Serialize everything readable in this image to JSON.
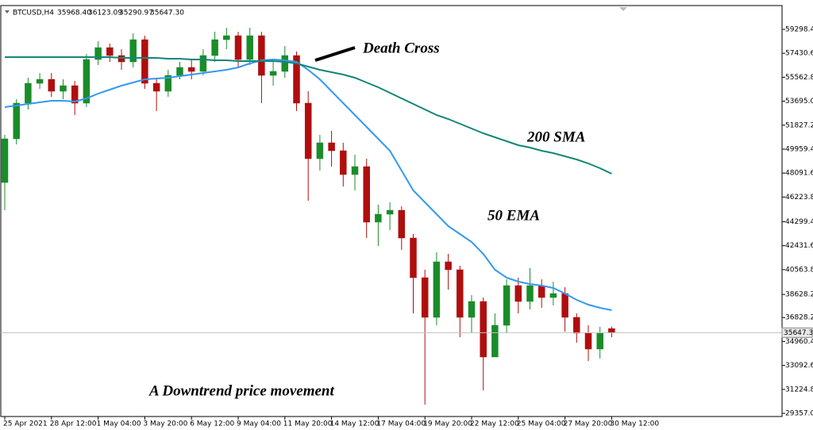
{
  "chart_data": {
    "type": "candlestick",
    "symbol": "BTCUSD,H4",
    "header_values": [
      "35968.40",
      "36123.09",
      "35290.97",
      "35647.30"
    ],
    "categories": [
      "25 Apr 2021",
      null,
      null,
      null,
      "28 Apr 12:00",
      null,
      null,
      null,
      "1 May 04:00",
      null,
      null,
      null,
      "3 May 20:00",
      null,
      null,
      null,
      "6 May 12:00",
      null,
      null,
      null,
      "9 May 04:00",
      null,
      null,
      null,
      "11 May 20:00",
      null,
      null,
      null,
      "14 May 12:00",
      null,
      null,
      null,
      "17 May 04:00",
      null,
      null,
      null,
      "19 May 20:00",
      null,
      null,
      null,
      "22 May 12:00",
      null,
      null,
      null,
      "25 May 04:00",
      null,
      null,
      null,
      "27 May 20:00",
      null,
      null,
      null,
      "30 May 12:00"
    ],
    "candles": {
      "up_color": "#1a8c2a",
      "down_color": "#b00e0e",
      "open": [
        47359,
        50762,
        53545,
        55092,
        55401,
        54473,
        54906,
        53545,
        56948,
        57875,
        57257,
        56762,
        58494,
        55092,
        54473,
        55710,
        56329,
        56020,
        57257,
        58494,
        58803,
        56948,
        58803,
        55710,
        56020,
        57257,
        53545,
        49215,
        50452,
        49834,
        47978,
        48596,
        44265,
        44884,
        45193,
        43028,
        39935,
        36843,
        41172,
        40553,
        36843,
        38080,
        33750,
        36224,
        39317,
        38080,
        39317,
        38389,
        38698,
        36843,
        35606,
        34369,
        35968.4
      ],
      "high": [
        51071,
        53854,
        55525,
        55896,
        55896,
        55401,
        55278,
        57381,
        58370,
        58185,
        57752,
        58989,
        58803,
        55525,
        56143,
        56762,
        56948,
        57752,
        59113,
        59422,
        59113,
        59422,
        59113,
        56762,
        57999,
        57566,
        54473,
        51071,
        51380,
        50452,
        49525,
        49215,
        45626,
        45813,
        45503,
        43338,
        40553,
        41916,
        41792,
        40863,
        38575,
        38389,
        37152,
        39812,
        39935,
        40678,
        39812,
        39626,
        39193,
        37152,
        36224,
        36100,
        36123.09
      ],
      "low": [
        45193,
        50329,
        53050,
        54659,
        54040,
        53854,
        52617,
        53236,
        56515,
        56762,
        56143,
        56329,
        54659,
        52927,
        54040,
        55401,
        55401,
        55710,
        56762,
        57752,
        56329,
        56515,
        53545,
        54906,
        55525,
        52927,
        45936,
        48287,
        48596,
        47050,
        46741,
        43028,
        42410,
        43648,
        42101,
        37152,
        30038,
        36224,
        39008,
        35297,
        35606,
        31151,
        34802,
        35606,
        37152,
        37461,
        37585,
        37770,
        35730,
        34863,
        33441,
        33627,
        35290.97
      ],
      "close": [
        50762,
        53545,
        55092,
        55401,
        54473,
        54906,
        53545,
        56948,
        57875,
        57257,
        56762,
        58494,
        55092,
        54473,
        55710,
        56329,
        56020,
        57257,
        58494,
        58803,
        56948,
        58803,
        55710,
        56020,
        57257,
        53545,
        49215,
        50452,
        49834,
        47978,
        48596,
        44265,
        44884,
        45193,
        43028,
        39935,
        36843,
        41172,
        40553,
        36843,
        38080,
        33750,
        36224,
        39317,
        38080,
        39317,
        38389,
        38698,
        36843,
        35606,
        34369,
        35606,
        35647.3
      ]
    },
    "series": [
      {
        "name": "50 EMA",
        "color": "#3399ee",
        "values": [
          53236,
          53360,
          53483,
          53607,
          53731,
          53731,
          53669,
          53916,
          54287,
          54597,
          54906,
          55153,
          55401,
          55463,
          55525,
          55649,
          55772,
          55896,
          56020,
          56144,
          56329,
          56638,
          56886,
          56948,
          56886,
          56762,
          56144,
          55401,
          54473,
          53545,
          52617,
          51689,
          50762,
          49834,
          48287,
          46741,
          45813,
          44884,
          43956,
          43338,
          42719,
          41791,
          40553,
          39935,
          39625,
          39440,
          39317,
          39131,
          38698,
          38203,
          37832,
          37585,
          37400
        ]
      },
      {
        "name": "200 SMA",
        "color": "#12857a",
        "values": [
          57133,
          57133,
          57133,
          57133,
          57133,
          57133,
          57133,
          57133,
          57133,
          57133,
          57071,
          57071,
          57071,
          57071,
          57009,
          57009,
          56948,
          56948,
          56886,
          56886,
          56824,
          56824,
          56824,
          56824,
          56762,
          56638,
          56391,
          56143,
          55958,
          55772,
          55525,
          55154,
          54783,
          54350,
          53917,
          53484,
          53050,
          52617,
          52308,
          51937,
          51566,
          51195,
          50885,
          50576,
          50267,
          50081,
          49834,
          49648,
          49401,
          49154,
          48844,
          48473,
          48040
        ]
      }
    ],
    "last_price": {
      "value": 35647.3,
      "label": "35647.30"
    },
    "annotations": [
      "Death Cross",
      "A Downtrend price movement"
    ],
    "ylim": [
      29110,
      61154
    ],
    "yticks": [
      {
        "value": 59298.4,
        "label": "59298.40"
      },
      {
        "value": 57430.6,
        "label": "57430.60"
      },
      {
        "value": 55562.8,
        "label": "55562.80"
      },
      {
        "value": 53695,
        "label": "53695.00"
      },
      {
        "value": 51827.2,
        "label": "51827.20"
      },
      {
        "value": 49959.4,
        "label": "49959.40"
      },
      {
        "value": 48091.6,
        "label": "48091.60"
      },
      {
        "value": 46223.8,
        "label": "46223.80"
      },
      {
        "value": 44299.4,
        "label": "44299.40"
      },
      {
        "value": 42431.6,
        "label": "42431.60"
      },
      {
        "value": 40563.8,
        "label": "40563.80"
      },
      {
        "value": 38628.2,
        "label": "38628.20"
      },
      {
        "value": 36828.2,
        "label": "36828.20"
      },
      {
        "value": 34960.4,
        "label": "34960.40"
      },
      {
        "value": 33092.6,
        "label": "33092.60"
      },
      {
        "value": 31224.8,
        "label": "31224.80"
      },
      {
        "value": 29357,
        "label": "29357.00"
      }
    ],
    "grid": false
  }
}
